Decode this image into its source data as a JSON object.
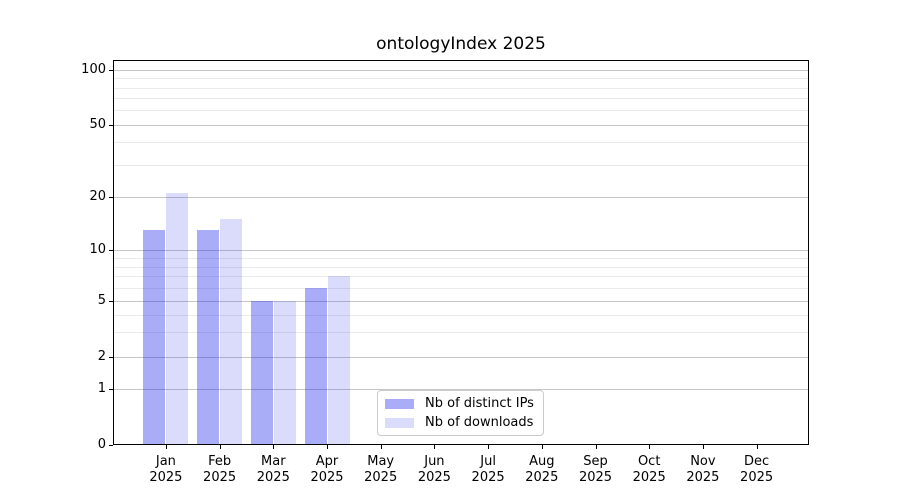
{
  "chart_data": {
    "type": "bar",
    "title": "ontologyIndex 2025",
    "categories": [
      "Jan",
      "Feb",
      "Mar",
      "Apr",
      "May",
      "Jun",
      "Jul",
      "Aug",
      "Sep",
      "Oct",
      "Nov",
      "Dec"
    ],
    "category_year": "2025",
    "series": [
      {
        "name": "Nb of distinct IPs",
        "color": "rgba(30,40,235,0.38)",
        "values": [
          13,
          13,
          5,
          6,
          0,
          0,
          0,
          0,
          0,
          0,
          0,
          0
        ]
      },
      {
        "name": "Nb of downloads",
        "color": "rgba(30,40,235,0.16)",
        "values": [
          21,
          15,
          5,
          7,
          0,
          0,
          0,
          0,
          0,
          0,
          0,
          0
        ]
      }
    ],
    "xlabel": "",
    "ylabel": "",
    "y_axis": {
      "scale": "log-like",
      "major_ticks": [
        0,
        1,
        2,
        5,
        10,
        20,
        50,
        100
      ],
      "minor_gridlines": [
        3,
        4,
        6,
        7,
        8,
        9,
        30,
        40,
        60,
        70,
        80,
        90
      ],
      "ylim": [
        0,
        120
      ]
    },
    "legend": {
      "position": "lower-center",
      "frame": true
    },
    "grid": {
      "major_color": "#c6c6c6",
      "minor_color": "#eaeaea"
    }
  }
}
